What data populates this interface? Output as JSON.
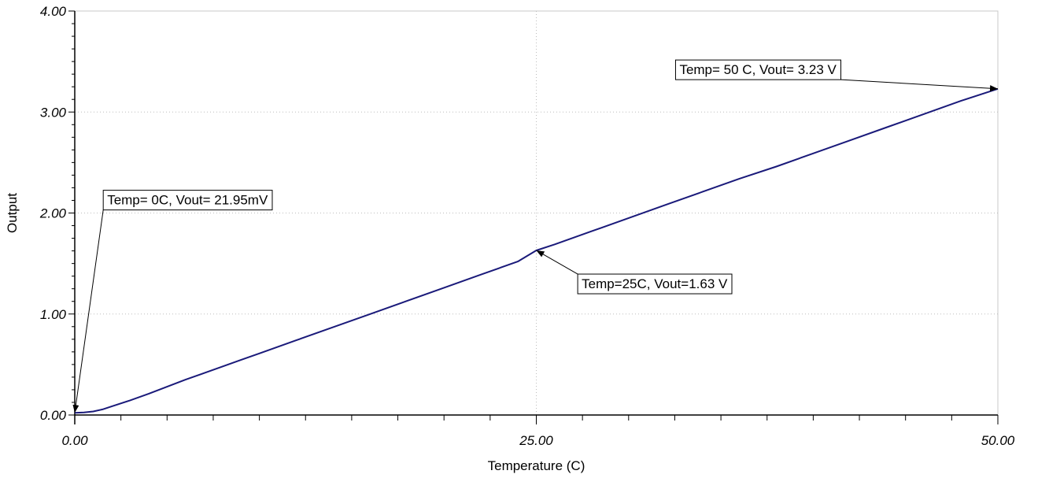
{
  "chart_data": {
    "type": "line",
    "title": "",
    "xlabel": "Temperature (C)",
    "ylabel": "Output",
    "xlim": [
      0,
      50
    ],
    "ylim": [
      0,
      4
    ],
    "x_ticks": [
      0,
      25,
      50
    ],
    "x_tick_labels": [
      "0.00",
      "25.00",
      "50.00"
    ],
    "y_ticks": [
      0,
      1,
      2,
      3,
      4
    ],
    "y_tick_labels": [
      "0.00",
      "1.00",
      "2.00",
      "3.00",
      "4.00"
    ],
    "grid": true,
    "legend": "none",
    "line_color": "#1a1a7a",
    "series": [
      {
        "x": [
          0,
          0.5,
          1.0,
          1.5,
          2.0,
          3,
          4,
          5,
          6,
          7,
          8,
          9,
          10,
          12,
          14,
          16,
          18,
          20,
          22,
          24,
          25,
          26,
          28,
          30,
          32,
          34,
          36,
          38,
          40,
          42,
          44,
          46,
          48,
          50
        ],
        "y": [
          0.02195,
          0.025,
          0.035,
          0.055,
          0.085,
          0.145,
          0.21,
          0.28,
          0.35,
          0.415,
          0.48,
          0.545,
          0.61,
          0.74,
          0.87,
          1.0,
          1.13,
          1.26,
          1.39,
          1.52,
          1.63,
          1.69,
          1.82,
          1.95,
          2.08,
          2.21,
          2.34,
          2.46,
          2.59,
          2.72,
          2.85,
          2.98,
          3.11,
          3.23
        ]
      }
    ],
    "annotations": [
      {
        "text": "Temp= 0C, Vout= 21.95mV",
        "x": 0,
        "y": 0.02195,
        "label_x": 1.5,
        "label_y": 2.12
      },
      {
        "text": "Temp=25C, Vout=1.63 V",
        "x": 25,
        "y": 1.63,
        "label_x": 27.2,
        "label_y": 1.29
      },
      {
        "text": "Temp= 50 C, Vout= 3.23 V",
        "x": 50,
        "y": 3.23,
        "label_x": 32.5,
        "label_y": 3.41
      }
    ]
  }
}
